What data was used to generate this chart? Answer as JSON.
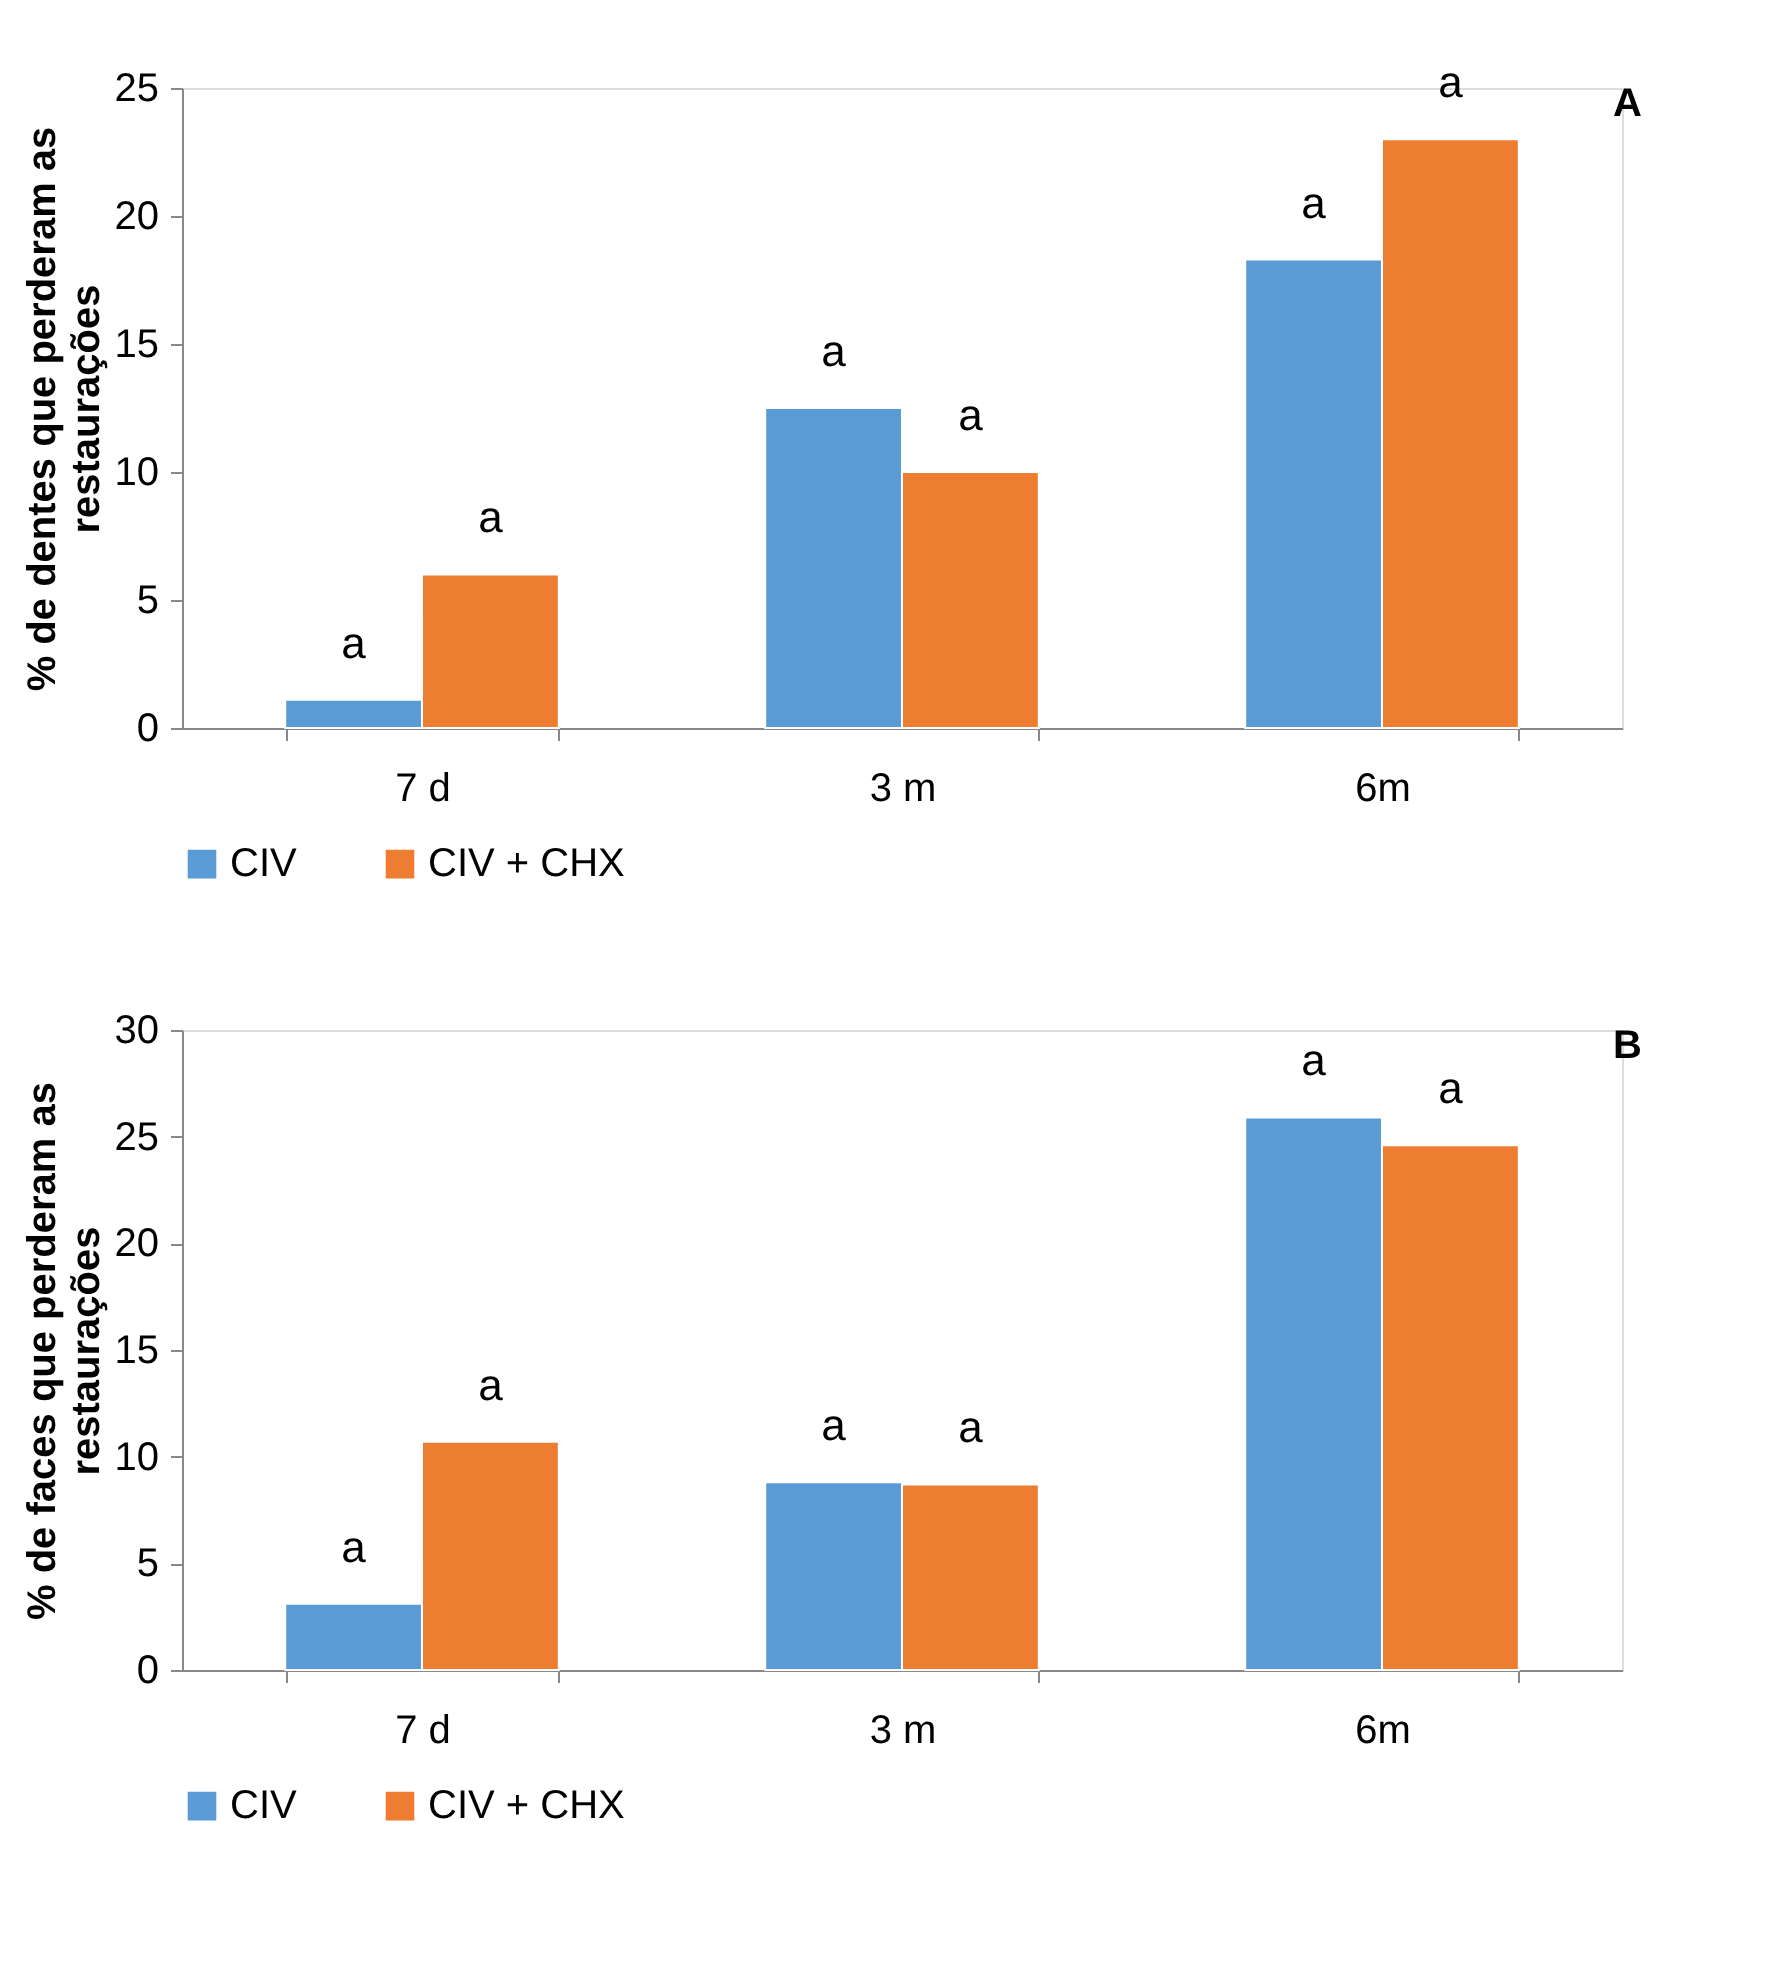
{
  "chart_data": [
    {
      "type": "bar",
      "ylabel": "% de dentes que perderam as\nrestaurações",
      "categories": [
        "7 d",
        "3 m",
        "6m"
      ],
      "series": [
        {
          "name": "CIV",
          "color": "#5b9bd5",
          "values": [
            1.1,
            12.5,
            18.3
          ]
        },
        {
          "name": "CIV + CHX",
          "color": "#ed7d31",
          "values": [
            6.0,
            10.0,
            23.0
          ]
        }
      ],
      "ylim": [
        0,
        25
      ],
      "yticks": [
        0,
        5,
        10,
        15,
        20,
        25
      ],
      "grid": false,
      "legend": "bottom",
      "annotations": [
        "A",
        {
          "text": "a",
          "x": "7 d",
          "y": 1.1
        },
        {
          "text": "a",
          "x": "7 d",
          "y": 6.0
        },
        {
          "text": "a",
          "x": "3 m",
          "y": 12.5
        },
        {
          "text": "a",
          "x": "3 m",
          "y": 10.0
        },
        {
          "text": "a",
          "x": "6m",
          "y": 18.3
        },
        {
          "text": "a",
          "x": "6m",
          "y": 23.0
        }
      ]
    },
    {
      "type": "bar",
      "ylabel": "% de faces que perderam as\nrestaurações",
      "categories": [
        "7 d",
        "3 m",
        "6m"
      ],
      "series": [
        {
          "name": "CIV",
          "color": "#5b9bd5",
          "values": [
            3.1,
            8.8,
            25.9
          ]
        },
        {
          "name": "CIV + CHX",
          "color": "#ed7d31",
          "values": [
            10.7,
            8.7,
            24.6
          ]
        }
      ],
      "ylim": [
        0,
        30
      ],
      "yticks": [
        0,
        5,
        10,
        15,
        20,
        25,
        30
      ],
      "grid": false,
      "legend": "bottom",
      "annotations": [
        "B",
        {
          "text": "a",
          "x": "7 d",
          "y": 3.1
        },
        {
          "text": "a",
          "x": "7 d",
          "y": 10.7
        },
        {
          "text": "a",
          "x": "3 m",
          "y": 8.8
        },
        {
          "text": "a",
          "x": "3 m",
          "y": 8.7
        },
        {
          "text": "a",
          "x": "6m",
          "y": 25.9
        },
        {
          "text": "a",
          "x": "6m",
          "y": 24.6
        }
      ]
    }
  ]
}
